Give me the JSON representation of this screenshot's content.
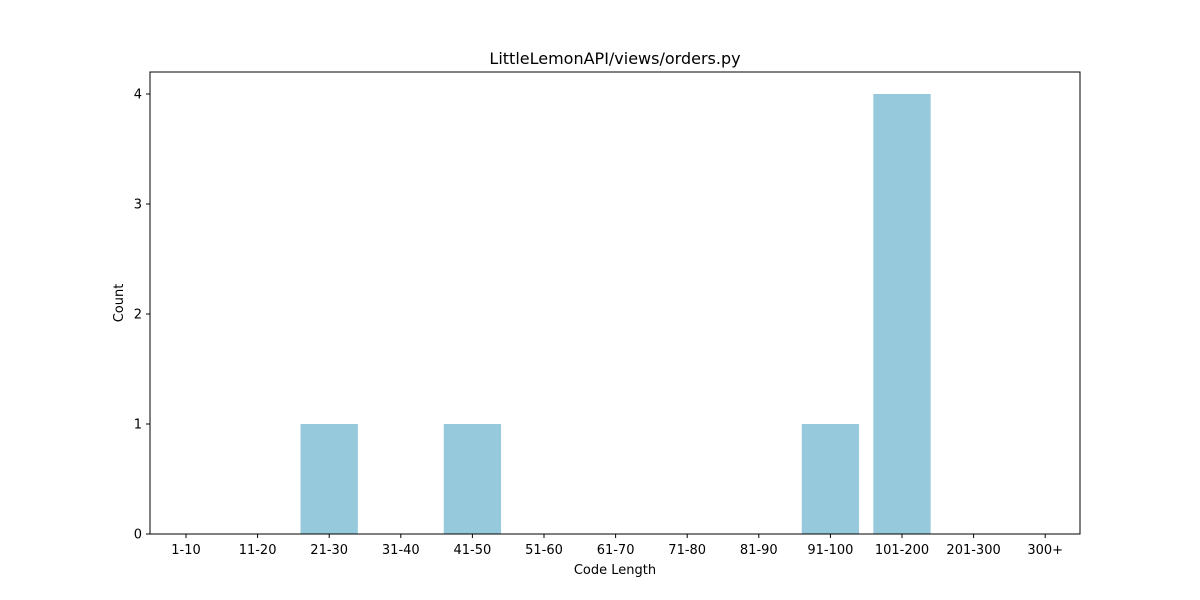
{
  "chart_data": {
    "type": "bar",
    "title": "LittleLemonAPI/views/orders.py",
    "xlabel": "Code Length",
    "ylabel": "Count",
    "categories": [
      "1-10",
      "11-20",
      "21-30",
      "31-40",
      "41-50",
      "51-60",
      "61-70",
      "71-80",
      "81-90",
      "91-100",
      "101-200",
      "201-300",
      "300+"
    ],
    "values": [
      0,
      0,
      1,
      0,
      1,
      0,
      0,
      0,
      0,
      1,
      4,
      0,
      0
    ],
    "ylim": [
      0,
      4.2
    ],
    "yticks": [
      0,
      1,
      2,
      3,
      4
    ],
    "grid": false,
    "legend": "none",
    "bar_color": "#96c9dc"
  }
}
